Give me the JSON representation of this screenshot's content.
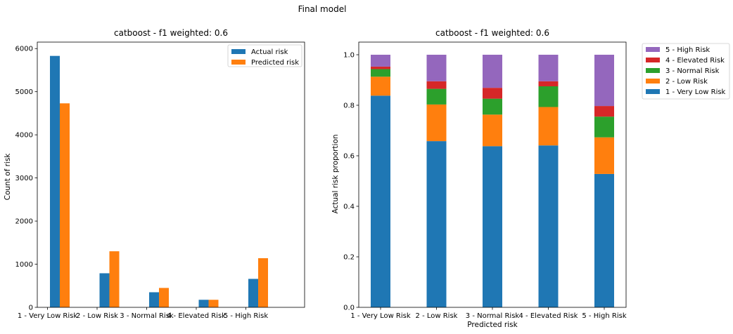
{
  "suptitle": "Final model",
  "chart_data": [
    {
      "type": "bar",
      "title": "catboost - f1 weighted: 0.6",
      "xlabel": "",
      "ylabel": "Count of risk",
      "categories": [
        "1 - Very Low Risk",
        "2 - Low Risk",
        "3 - Normal Risk",
        "4 - Elevated Risk",
        "5 - High Risk"
      ],
      "series": [
        {
          "name": "Actual risk",
          "color": "#1f77b4",
          "values": [
            5830,
            790,
            350,
            175,
            660
          ]
        },
        {
          "name": "Predicted risk",
          "color": "#ff7f0e",
          "values": [
            4730,
            1300,
            450,
            175,
            1140
          ]
        }
      ],
      "ylim": [
        0,
        6150
      ],
      "yticks": [
        0,
        1000,
        2000,
        3000,
        4000,
        5000,
        6000
      ],
      "legend": "top-right"
    },
    {
      "type": "bar",
      "stacked": true,
      "title": "catboost - f1 weighted: 0.6",
      "xlabel": "Predicted risk",
      "ylabel": "Actual risk proportion",
      "categories": [
        "1 - Very Low Risk",
        "2 - Low Risk",
        "3 - Normal Risk",
        "4 - Elevated Risk",
        "5 - High Risk"
      ],
      "series": [
        {
          "name": "1 - Very Low Risk",
          "color": "#1f77b4",
          "values": [
            0.838,
            0.658,
            0.638,
            0.641,
            0.528
          ]
        },
        {
          "name": "2 - Low Risk",
          "color": "#ff7f0e",
          "values": [
            0.075,
            0.145,
            0.125,
            0.152,
            0.145
          ]
        },
        {
          "name": "3 - Normal Risk",
          "color": "#2ca02c",
          "values": [
            0.03,
            0.062,
            0.063,
            0.082,
            0.082
          ]
        },
        {
          "name": "4 - Elevated Risk",
          "color": "#d62728",
          "values": [
            0.01,
            0.03,
            0.043,
            0.02,
            0.042
          ]
        },
        {
          "name": "5 - High Risk",
          "color": "#9467bd",
          "values": [
            0.047,
            0.105,
            0.131,
            0.105,
            0.203
          ]
        }
      ],
      "ylim": [
        0,
        1.05
      ],
      "yticks": [
        "0.0",
        "0.2",
        "0.4",
        "0.6",
        "0.8",
        "1.0"
      ],
      "legend": "outside upper right, reversed order"
    }
  ]
}
